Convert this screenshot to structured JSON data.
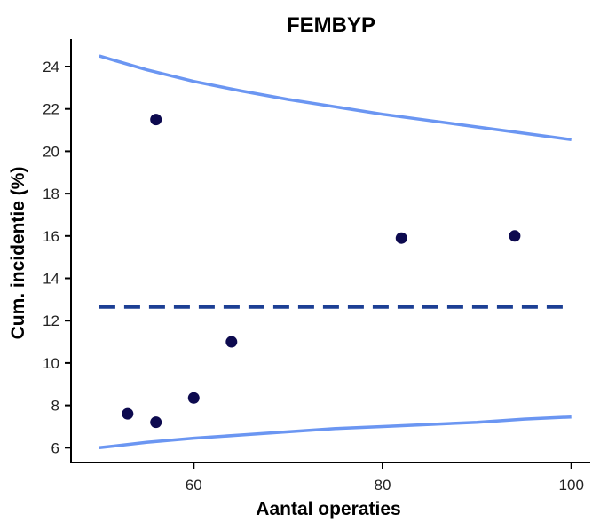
{
  "chart_data": {
    "type": "scatter",
    "title": "FEMBYP",
    "xlabel": "Aantal operaties",
    "ylabel": "Cum. incidentie (%)",
    "xlim": [
      47,
      102
    ],
    "ylim": [
      5.3,
      25.3
    ],
    "x_ticks": [
      60,
      80,
      100
    ],
    "y_ticks": [
      6,
      8,
      10,
      12,
      14,
      16,
      18,
      20,
      22,
      24
    ],
    "grid": false,
    "points": [
      {
        "x": 53,
        "y": 7.6
      },
      {
        "x": 56,
        "y": 7.2
      },
      {
        "x": 56,
        "y": 21.5
      },
      {
        "x": 60,
        "y": 8.35
      },
      {
        "x": 64,
        "y": 11.0
      },
      {
        "x": 82,
        "y": 15.9
      },
      {
        "x": 94,
        "y": 16.0
      }
    ],
    "reference_line": {
      "y": 12.65,
      "x_range": [
        50,
        100
      ],
      "style": "dashed"
    },
    "control_limits": {
      "x": [
        50,
        55,
        60,
        65,
        70,
        75,
        80,
        85,
        90,
        95,
        100
      ],
      "upper": [
        24.5,
        23.85,
        23.3,
        22.85,
        22.45,
        22.1,
        21.75,
        21.45,
        21.15,
        20.85,
        20.55
      ],
      "lower": [
        6.0,
        6.25,
        6.45,
        6.6,
        6.75,
        6.9,
        7.0,
        7.1,
        7.2,
        7.35,
        7.45
      ]
    },
    "colors": {
      "points": "#0d0a4f",
      "reference_line": "#1c3f94",
      "control_limits": "#6b96f2",
      "axis": "#000000"
    }
  }
}
